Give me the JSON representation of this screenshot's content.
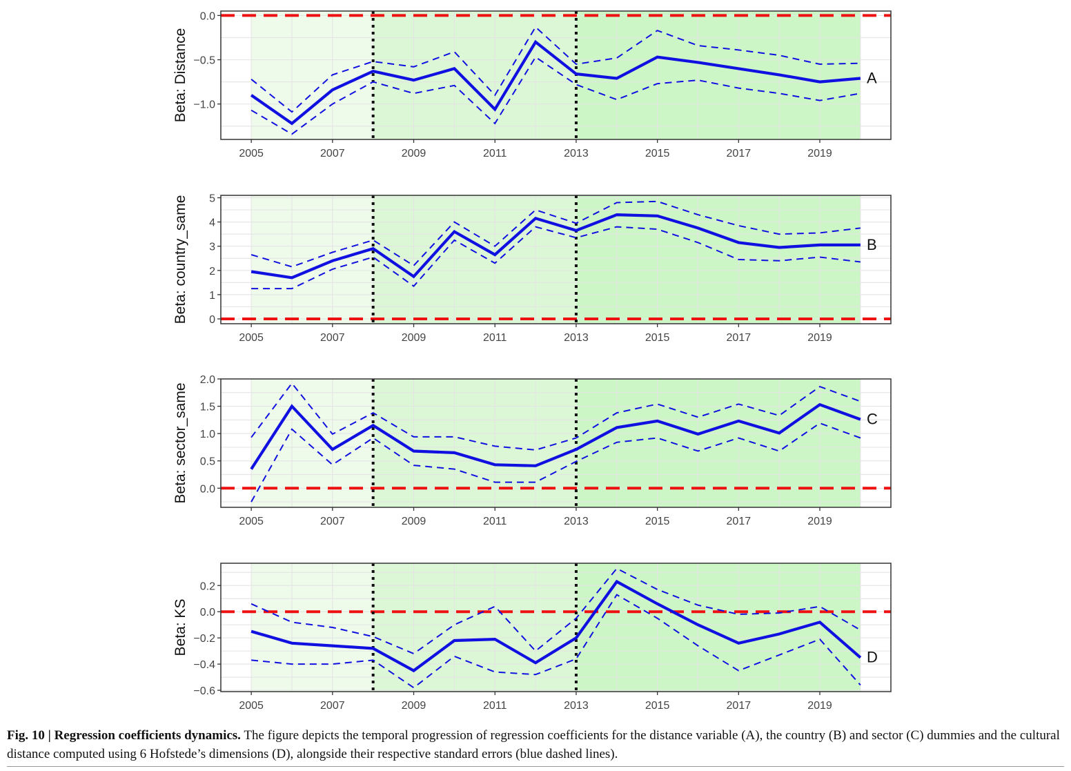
{
  "caption": {
    "title": "Fig. 10 | Regression coefficients dynamics.",
    "text": "The figure depicts the temporal progression of regression coefficients for the distance variable (A), the country (B) and sector (C) dummies and the cultural distance computed using 6 Hofstede’s dimensions (D), alongside their respective standard errors (blue dashed lines)."
  },
  "colors": {
    "coefficient_line": "#1010e0",
    "zero_line": "#ee1111",
    "shade_period1": "#eefbea",
    "shade_period2": "#dcf7d6",
    "shade_period3": "#cdf6c6",
    "grid": "#e4e4e4"
  },
  "chart_data": [
    {
      "type": "line",
      "panel_label": "A",
      "ylabel": "Beta: Distance",
      "x_ticks": [
        2005,
        2007,
        2009,
        2011,
        2013,
        2015,
        2017,
        2019
      ],
      "y_ticks": [
        0.0,
        -0.5,
        -1.0
      ],
      "y_tick_labels": [
        "0.0",
        "−0.5",
        "−1.0"
      ],
      "xlim": [
        2004.25,
        2020.75
      ],
      "ylim": [
        -1.4,
        0.05
      ],
      "vlines": [
        2008,
        2013
      ],
      "hline": 0,
      "shade": [
        [
          2005,
          2008
        ],
        [
          2008,
          2013
        ],
        [
          2013,
          2020
        ]
      ],
      "x": [
        2005,
        2006,
        2007,
        2008,
        2009,
        2010,
        2011,
        2012,
        2013,
        2014,
        2015,
        2016,
        2017,
        2018,
        2019,
        2020
      ],
      "series": [
        {
          "role": "coefficient",
          "values": [
            -0.9,
            -1.22,
            -0.84,
            -0.63,
            -0.73,
            -0.6,
            -1.06,
            -0.3,
            -0.66,
            -0.71,
            -0.47,
            -0.53,
            -0.6,
            -0.67,
            -0.75,
            -0.71
          ]
        },
        {
          "role": "upper",
          "values": [
            -0.72,
            -1.09,
            -0.67,
            -0.52,
            -0.58,
            -0.41,
            -0.9,
            -0.13,
            -0.55,
            -0.48,
            -0.17,
            -0.34,
            -0.39,
            -0.45,
            -0.55,
            -0.54
          ]
        },
        {
          "role": "lower",
          "values": [
            -1.07,
            -1.34,
            -1.0,
            -0.75,
            -0.88,
            -0.79,
            -1.22,
            -0.47,
            -0.78,
            -0.95,
            -0.77,
            -0.73,
            -0.82,
            -0.88,
            -0.96,
            -0.88
          ]
        }
      ]
    },
    {
      "type": "line",
      "panel_label": "B",
      "ylabel": "Beta: country_same",
      "x_ticks": [
        2005,
        2007,
        2009,
        2011,
        2013,
        2015,
        2017,
        2019
      ],
      "y_ticks": [
        0,
        1,
        2,
        3,
        4,
        5
      ],
      "y_tick_labels": [
        "0",
        "1",
        "2",
        "3",
        "4",
        "5"
      ],
      "xlim": [
        2004.25,
        2020.75
      ],
      "ylim": [
        -0.2,
        5.1
      ],
      "vlines": [
        2008,
        2013
      ],
      "hline": 0,
      "shade": [
        [
          2005,
          2008
        ],
        [
          2008,
          2013
        ],
        [
          2013,
          2020
        ]
      ],
      "x": [
        2005,
        2006,
        2007,
        2008,
        2009,
        2010,
        2011,
        2012,
        2013,
        2014,
        2015,
        2016,
        2017,
        2018,
        2019,
        2020
      ],
      "series": [
        {
          "role": "coefficient",
          "values": [
            1.95,
            1.7,
            2.4,
            2.9,
            1.75,
            3.6,
            2.65,
            4.15,
            3.65,
            4.3,
            4.25,
            3.75,
            3.15,
            2.95,
            3.05,
            3.05
          ]
        },
        {
          "role": "upper",
          "values": [
            2.65,
            2.15,
            2.75,
            3.25,
            2.2,
            4.0,
            3.0,
            4.5,
            3.95,
            4.8,
            4.85,
            4.3,
            3.85,
            3.5,
            3.55,
            3.75
          ]
        },
        {
          "role": "lower",
          "values": [
            1.25,
            1.25,
            2.05,
            2.55,
            1.35,
            3.25,
            2.3,
            3.8,
            3.35,
            3.8,
            3.7,
            3.15,
            2.45,
            2.4,
            2.55,
            2.35
          ]
        }
      ]
    },
    {
      "type": "line",
      "panel_label": "C",
      "ylabel": "Beta: sector_same",
      "x_ticks": [
        2005,
        2007,
        2009,
        2011,
        2013,
        2015,
        2017,
        2019
      ],
      "y_ticks": [
        0.0,
        0.5,
        1.0,
        1.5,
        2.0
      ],
      "y_tick_labels": [
        "0.0",
        "0.5",
        "1.0",
        "1.5",
        "2.0"
      ],
      "xlim": [
        2004.25,
        2020.75
      ],
      "ylim": [
        -0.35,
        2.0
      ],
      "vlines": [
        2008,
        2013
      ],
      "hline": 0,
      "shade": [
        [
          2005,
          2008
        ],
        [
          2008,
          2013
        ],
        [
          2013,
          2020
        ]
      ],
      "x": [
        2005,
        2006,
        2007,
        2008,
        2009,
        2010,
        2011,
        2012,
        2013,
        2014,
        2015,
        2016,
        2017,
        2018,
        2019,
        2020
      ],
      "series": [
        {
          "role": "coefficient",
          "values": [
            0.35,
            1.5,
            0.71,
            1.15,
            0.68,
            0.65,
            0.43,
            0.41,
            0.71,
            1.11,
            1.23,
            0.99,
            1.23,
            1.01,
            1.53,
            1.26
          ]
        },
        {
          "role": "upper",
          "values": [
            0.93,
            1.92,
            0.99,
            1.38,
            0.94,
            0.94,
            0.77,
            0.7,
            0.92,
            1.38,
            1.54,
            1.3,
            1.54,
            1.33,
            1.86,
            1.59
          ]
        },
        {
          "role": "lower",
          "values": [
            -0.25,
            1.08,
            0.43,
            0.92,
            0.42,
            0.35,
            0.11,
            0.11,
            0.49,
            0.84,
            0.92,
            0.68,
            0.92,
            0.68,
            1.19,
            0.92
          ]
        }
      ]
    },
    {
      "type": "line",
      "panel_label": "D",
      "ylabel": "Beta: KS",
      "x_ticks": [
        2005,
        2007,
        2009,
        2011,
        2013,
        2015,
        2017,
        2019
      ],
      "y_ticks": [
        0.2,
        0.0,
        -0.2,
        -0.4,
        -0.6
      ],
      "y_tick_labels": [
        "0.2",
        "0.0",
        "−0.2",
        "−0.4",
        "−0.6"
      ],
      "xlim": [
        2004.25,
        2020.75
      ],
      "ylim": [
        -0.61,
        0.37
      ],
      "vlines": [
        2008,
        2013
      ],
      "hline": 0,
      "shade": [
        [
          2005,
          2008
        ],
        [
          2008,
          2013
        ],
        [
          2013,
          2020
        ]
      ],
      "x": [
        2005,
        2006,
        2007,
        2008,
        2009,
        2010,
        2011,
        2012,
        2013,
        2014,
        2015,
        2016,
        2017,
        2018,
        2019,
        2020
      ],
      "series": [
        {
          "role": "coefficient",
          "values": [
            -0.15,
            -0.24,
            -0.26,
            -0.28,
            -0.45,
            -0.22,
            -0.21,
            -0.39,
            -0.2,
            0.23,
            0.06,
            -0.1,
            -0.24,
            -0.17,
            -0.08,
            -0.35
          ]
        },
        {
          "role": "upper",
          "values": [
            0.06,
            -0.08,
            -0.12,
            -0.19,
            -0.32,
            -0.1,
            0.04,
            -0.3,
            -0.05,
            0.33,
            0.17,
            0.05,
            -0.02,
            -0.01,
            0.04,
            -0.14
          ]
        },
        {
          "role": "lower",
          "values": [
            -0.37,
            -0.4,
            -0.4,
            -0.37,
            -0.58,
            -0.34,
            -0.46,
            -0.48,
            -0.36,
            0.13,
            -0.05,
            -0.26,
            -0.45,
            -0.33,
            -0.21,
            -0.56
          ]
        }
      ]
    }
  ]
}
